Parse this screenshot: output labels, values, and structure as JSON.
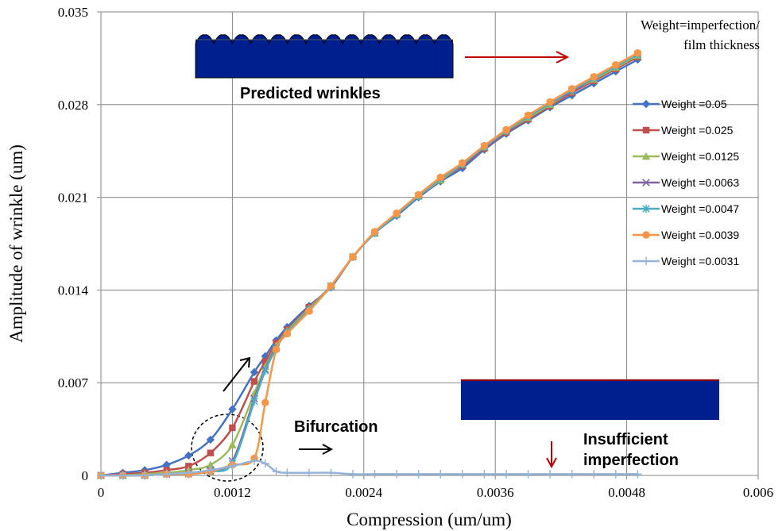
{
  "chart_data": {
    "type": "line",
    "xlabel": "Compression (um/um)",
    "ylabel": "Amplitude of wrinkle (um)",
    "xlim": [
      0,
      0.006
    ],
    "ylim": [
      0,
      0.035
    ],
    "x_ticks": [
      "0",
      "0.0012",
      "0.0024",
      "0.0036",
      "0.0048",
      "0.006"
    ],
    "y_ticks": [
      "0",
      "0.007",
      "0.014",
      "0.021",
      "0.028",
      "0.035"
    ],
    "grid": true,
    "legend_title": "Weight=imperfection/ film thickness",
    "legend_title_lines": [
      "Weight=imperfection/",
      "film thickness"
    ],
    "legend_position": "right",
    "x": [
      0,
      0.0002,
      0.0004,
      0.0006,
      0.0008,
      0.001,
      0.0012,
      0.0014,
      0.0015,
      0.0016,
      0.0017,
      0.0019,
      0.0021,
      0.0023,
      0.0025,
      0.0027,
      0.0029,
      0.0031,
      0.0033,
      0.0035,
      0.0037,
      0.0039,
      0.0041,
      0.0043,
      0.0045,
      0.0047,
      0.0049
    ],
    "series": [
      {
        "name": "Weight =0.05",
        "color": "#4472C4",
        "marker": "diamond",
        "values": [
          0,
          0.0002,
          0.0004,
          0.0008,
          0.0015,
          0.0027,
          0.005,
          0.0078,
          0.009,
          0.0102,
          0.0112,
          0.0128,
          0.0142,
          0.0165,
          0.0183,
          0.0196,
          0.021,
          0.0222,
          0.0232,
          0.0246,
          0.0258,
          0.0268,
          0.0278,
          0.0287,
          0.0296,
          0.0305,
          0.0314
        ]
      },
      {
        "name": "Weight =0.025",
        "color": "#C0504D",
        "marker": "square",
        "values": [
          0,
          0.0001,
          0.0002,
          0.0004,
          0.0007,
          0.0017,
          0.0036,
          0.0071,
          0.0086,
          0.01,
          0.011,
          0.0127,
          0.0143,
          0.0165,
          0.0183,
          0.0197,
          0.0211,
          0.0223,
          0.0234,
          0.0247,
          0.0259,
          0.0269,
          0.0279,
          0.0289,
          0.0298,
          0.0307,
          0.0316
        ]
      },
      {
        "name": "Weight =0.0125",
        "color": "#9BBB59",
        "marker": "triangle",
        "values": [
          0,
          0,
          0.0001,
          0.0002,
          0.0004,
          0.0008,
          0.0023,
          0.0062,
          0.0082,
          0.0098,
          0.0109,
          0.0126,
          0.0143,
          0.0165,
          0.0183,
          0.0197,
          0.0211,
          0.0223,
          0.0235,
          0.0248,
          0.026,
          0.027,
          0.028,
          0.029,
          0.0299,
          0.0308,
          0.0317
        ]
      },
      {
        "name": "Weight =0.0063",
        "color": "#8064A2",
        "marker": "x",
        "values": [
          0,
          0,
          0,
          0.0001,
          0.0002,
          0.0004,
          0.0011,
          0.0058,
          0.008,
          0.0097,
          0.0108,
          0.0125,
          0.0143,
          0.0165,
          0.0183,
          0.0197,
          0.0211,
          0.0224,
          0.0235,
          0.0248,
          0.026,
          0.0271,
          0.0281,
          0.029,
          0.03,
          0.0309,
          0.0318
        ]
      },
      {
        "name": "Weight =0.0047",
        "color": "#4BACC6",
        "marker": "star",
        "values": [
          0,
          0,
          0,
          0.0001,
          0.0001,
          0.0003,
          0.0009,
          0.0056,
          0.0079,
          0.0096,
          0.0108,
          0.0125,
          0.0143,
          0.0165,
          0.0183,
          0.0197,
          0.0211,
          0.0224,
          0.0235,
          0.0248,
          0.026,
          0.0271,
          0.0281,
          0.0291,
          0.03,
          0.0309,
          0.0318
        ]
      },
      {
        "name": "Weight =0.0039",
        "color": "#F79646",
        "marker": "circle",
        "values": [
          0,
          0,
          0,
          0.0001,
          0.0001,
          0.0003,
          0.0008,
          0.0013,
          0.0055,
          0.0095,
          0.0107,
          0.0124,
          0.0143,
          0.0165,
          0.0184,
          0.0198,
          0.0212,
          0.0225,
          0.0236,
          0.0249,
          0.0261,
          0.0272,
          0.0282,
          0.0292,
          0.0301,
          0.031,
          0.0319
        ]
      },
      {
        "name": "Weight =0.0031",
        "color": "#95B3D7",
        "marker": "plus",
        "values": [
          0,
          0,
          0,
          0.0001,
          0.0002,
          0.0004,
          0.0007,
          0.0011,
          0.0009,
          0.0003,
          0.0002,
          0.0002,
          0.0002,
          0.0001,
          0.0001,
          0.0001,
          0.0001,
          0.0001,
          0.0001,
          0.0001,
          0.0001,
          0.0001,
          0.0001,
          0.0001,
          0.0001,
          0.0001,
          0.0001
        ]
      }
    ],
    "annotations": {
      "predicted_wrinkles": "Predicted wrinkles",
      "bifurcation": "Bifurcation",
      "insufficient_line1": "Insufficient",
      "insufficient_line2": "imperfection"
    }
  }
}
